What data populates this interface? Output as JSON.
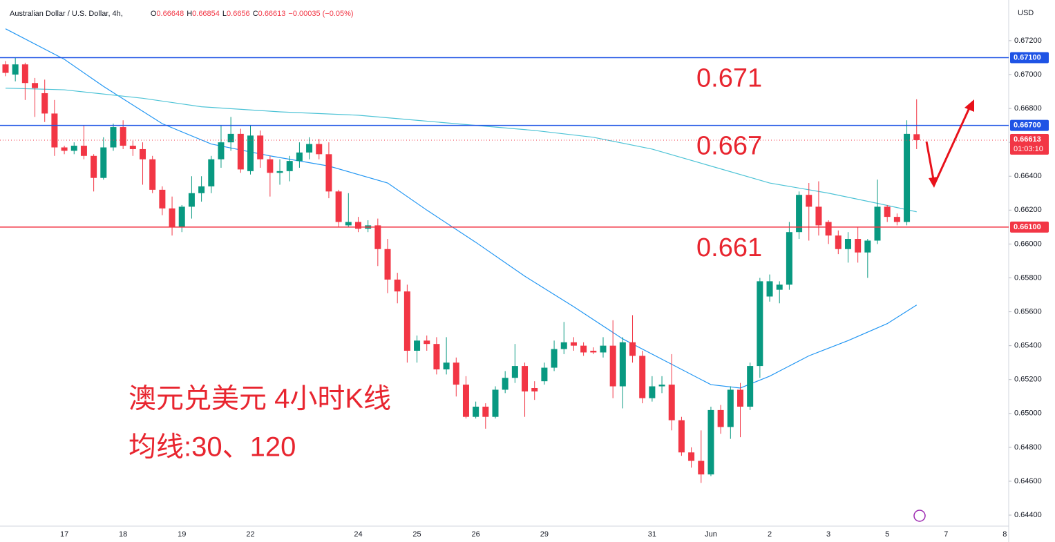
{
  "chart_data": {
    "type": "candlestick",
    "header": {
      "symbol": "Australian Dollar / U.S. Dollar, 4h,",
      "open_label": "O",
      "open": 0.66648,
      "high_label": "H",
      "high": 0.66854,
      "low_label": "L",
      "low": 0.6656,
      "close_label": "C",
      "close": 0.66613,
      "change": "−0.00035 (−0.05%)"
    },
    "currency": "USD",
    "annotations": [
      "澳元兑美元 4小时K线",
      "均线:30、120"
    ],
    "up_color": "#089981",
    "down_color": "#f23645",
    "categories": [
      null,
      null,
      null,
      null,
      null,
      null,
      "17",
      null,
      null,
      null,
      null,
      null,
      "18",
      null,
      null,
      null,
      null,
      null,
      "19",
      null,
      null,
      null,
      null,
      null,
      null,
      "22",
      null,
      null,
      null,
      null,
      null,
      null,
      null,
      null,
      null,
      null,
      "24",
      null,
      null,
      null,
      null,
      null,
      "25",
      null,
      null,
      null,
      null,
      null,
      "26",
      null,
      null,
      null,
      null,
      null,
      null,
      "29",
      null,
      null,
      null,
      null,
      null,
      null,
      null,
      null,
      null,
      null,
      "31",
      null,
      null,
      null,
      null,
      null,
      "Jun",
      null,
      null,
      null,
      null,
      null,
      "2",
      null,
      null,
      null,
      null,
      null,
      "3",
      null,
      null,
      null,
      null,
      null,
      "5",
      null,
      null,
      null,
      null,
      null,
      "7",
      null,
      null,
      null,
      null,
      null,
      "8"
    ],
    "open": [
      0.6706,
      0.67,
      0.6706,
      0.6695,
      0.6689,
      0.6677,
      0.6657,
      0.6655,
      0.6658,
      0.6652,
      0.6639,
      0.6657,
      0.6669,
      0.6658,
      0.6656,
      0.665,
      0.6632,
      0.6621,
      0.661,
      0.6622,
      0.663,
      0.6634,
      0.665,
      0.666,
      0.6665,
      0.6643,
      0.6664,
      0.665,
      0.6642,
      0.6643,
      0.6649,
      0.6654,
      0.6659,
      0.6653,
      0.6631,
      0.6611,
      0.6613,
      0.6609,
      0.6611,
      0.6597,
      0.6579,
      0.6572,
      0.6537,
      0.6543,
      0.6541,
      0.6526,
      0.653,
      0.6517,
      0.6498,
      0.6504,
      0.6498,
      0.6514,
      0.6521,
      0.6528,
      0.6515,
      0.6519,
      0.6527,
      0.6538,
      0.6542,
      0.654,
      0.6537,
      0.6536,
      0.654,
      0.6516,
      0.6542,
      0.6534,
      0.6509,
      0.6516,
      0.6517,
      0.6496,
      0.6477,
      0.6472,
      0.6464,
      0.6502,
      0.6492,
      0.6514,
      0.6504,
      0.6528,
      0.6569,
      0.6573,
      0.6576,
      0.6607,
      0.6629,
      0.6622,
      0.6613,
      0.6605,
      0.6597,
      0.6603,
      0.6595,
      0.6602,
      0.6622,
      0.6616,
      0.6613,
      0.66648,
      null,
      null,
      null,
      null,
      null,
      null,
      null,
      null,
      null
    ],
    "high": [
      0.6708,
      0.671,
      0.6707,
      0.6698,
      0.6697,
      0.6685,
      0.6658,
      0.666,
      0.667,
      0.6653,
      0.6663,
      0.6671,
      0.6673,
      0.6661,
      0.666,
      0.6652,
      0.6634,
      0.6628,
      0.6623,
      0.664,
      0.664,
      0.6652,
      0.667,
      0.6675,
      0.6668,
      0.667,
      0.6667,
      0.6652,
      0.665,
      0.6652,
      0.666,
      0.6663,
      0.6662,
      0.666,
      0.6632,
      0.663,
      0.6616,
      0.6614,
      0.6615,
      0.6603,
      0.6583,
      0.6576,
      0.6546,
      0.6546,
      0.6545,
      0.6545,
      0.6533,
      0.6522,
      0.6507,
      0.6506,
      0.6516,
      0.6525,
      0.6541,
      0.653,
      0.6519,
      0.653,
      0.6543,
      0.6554,
      0.6545,
      0.6542,
      0.6539,
      0.6545,
      0.6555,
      0.6545,
      0.6558,
      0.6537,
      0.6522,
      0.6522,
      0.6535,
      0.6498,
      0.648,
      0.649,
      0.6504,
      0.6505,
      0.6516,
      0.6518,
      0.653,
      0.658,
      0.6582,
      0.6578,
      0.6613,
      0.6631,
      0.6636,
      0.6637,
      0.6614,
      0.6608,
      0.6607,
      0.661,
      0.6603,
      0.6638,
      0.6623,
      0.6618,
      0.6673,
      0.66854,
      null,
      null,
      null,
      null,
      null,
      null,
      null,
      null,
      null
    ],
    "low": [
      0.6699,
      0.6696,
      0.6685,
      0.6675,
      0.6672,
      0.6652,
      0.6653,
      0.6653,
      0.665,
      0.6631,
      0.6638,
      0.6655,
      0.6656,
      0.6652,
      0.6635,
      0.663,
      0.6617,
      0.6605,
      0.6607,
      0.6615,
      0.6625,
      0.663,
      0.6645,
      0.6655,
      0.6642,
      0.6641,
      0.6645,
      0.6628,
      0.6635,
      0.6637,
      0.6645,
      0.665,
      0.665,
      0.6627,
      0.661,
      0.661,
      0.6607,
      0.6607,
      0.6587,
      0.6571,
      0.6565,
      0.653,
      0.653,
      0.6537,
      0.6523,
      0.6523,
      0.651,
      0.6497,
      0.6497,
      0.6491,
      0.6497,
      0.6512,
      0.6518,
      0.6498,
      0.6508,
      0.6517,
      0.6525,
      0.6535,
      0.6537,
      0.6534,
      0.6535,
      0.6533,
      0.6509,
      0.6503,
      0.653,
      0.6506,
      0.6507,
      0.6512,
      0.649,
      0.6475,
      0.6468,
      0.6459,
      0.6463,
      0.6488,
      0.6485,
      0.6486,
      0.6502,
      0.6521,
      0.6566,
      0.6565,
      0.6573,
      0.6603,
      0.6602,
      0.6605,
      0.66,
      0.6594,
      0.6589,
      0.6589,
      0.658,
      0.66,
      0.6613,
      0.6611,
      0.6611,
      0.6656,
      null,
      null,
      null,
      null,
      null,
      null,
      null,
      null,
      null
    ],
    "close": [
      0.6701,
      0.6706,
      0.6695,
      0.6692,
      0.6677,
      0.6657,
      0.6655,
      0.6658,
      0.6652,
      0.6639,
      0.6657,
      0.6669,
      0.6658,
      0.6656,
      0.665,
      0.6632,
      0.6621,
      0.661,
      0.6622,
      0.663,
      0.6634,
      0.665,
      0.666,
      0.6665,
      0.6644,
      0.6664,
      0.665,
      0.6642,
      0.6643,
      0.6649,
      0.6654,
      0.6659,
      0.6653,
      0.6631,
      0.6613,
      0.6613,
      0.6609,
      0.6611,
      0.6597,
      0.6579,
      0.6572,
      0.6537,
      0.6543,
      0.6541,
      0.6526,
      0.653,
      0.6517,
      0.6498,
      0.6504,
      0.6498,
      0.6514,
      0.6521,
      0.6528,
      0.6513,
      0.6513,
      0.6527,
      0.6538,
      0.6542,
      0.654,
      0.6536,
      0.6536,
      0.654,
      0.6516,
      0.6542,
      0.6534,
      0.6509,
      0.6516,
      0.6517,
      0.6496,
      0.6477,
      0.6472,
      0.6464,
      0.6502,
      0.6492,
      0.6514,
      0.6504,
      0.6528,
      0.6578,
      0.6578,
      0.6576,
      0.6607,
      0.6629,
      0.6622,
      0.6611,
      0.6605,
      0.6597,
      0.6603,
      0.6595,
      0.6602,
      0.6622,
      0.6616,
      0.6613,
      0.6665,
      0.66613,
      null,
      null,
      null,
      null,
      null,
      null,
      null,
      null,
      null
    ],
    "moving_averages": [
      {
        "color": "#2196f3",
        "x": [
          0,
          6,
          10,
          16,
          21,
          27,
          33,
          39,
          43,
          48,
          53,
          58,
          63,
          68,
          72,
          75,
          78,
          82,
          86,
          90,
          93
        ],
        "values": [
          0.6727,
          0.6709,
          0.6693,
          0.6671,
          0.6659,
          0.6652,
          0.6646,
          0.6636,
          0.662,
          0.6601,
          0.6581,
          0.6563,
          0.6544,
          0.6529,
          0.6517,
          0.6515,
          0.6522,
          0.6534,
          0.6543,
          0.6553,
          0.6564
        ]
      },
      {
        "color": "#4dc3d6",
        "x": [
          0,
          6,
          14,
          20,
          28,
          36,
          42,
          48,
          54,
          60,
          66,
          72,
          78,
          84,
          89,
          93
        ],
        "values": [
          0.6692,
          0.6691,
          0.6686,
          0.6681,
          0.6678,
          0.6676,
          0.6673,
          0.667,
          0.6667,
          0.6663,
          0.6656,
          0.6646,
          0.6636,
          0.663,
          0.6624,
          0.6619
        ]
      }
    ],
    "hlines": [
      {
        "value": 0.671,
        "tag": "0.67100",
        "note": "0.671",
        "color": "#1e53e5"
      },
      {
        "value": 0.667,
        "tag": "0.66700",
        "note": "0.667",
        "color": "#1e53e5"
      },
      {
        "value": 0.661,
        "tag": "0.66100",
        "note": "0.661",
        "color": "#f23645"
      }
    ],
    "last_price": 0.66613,
    "countdown": "01:03:10",
    "ylim": [
      0.64335,
      0.6744
    ],
    "yticks": [
      {
        "value": 0.644,
        "label": "0.64400"
      },
      {
        "value": 0.646,
        "label": "0.64600"
      },
      {
        "value": 0.648,
        "label": "0.64800"
      },
      {
        "value": 0.65,
        "label": "0.65000"
      },
      {
        "value": 0.652,
        "label": "0.65200"
      },
      {
        "value": 0.654,
        "label": "0.65400"
      },
      {
        "value": 0.656,
        "label": "0.65600"
      },
      {
        "value": 0.658,
        "label": "0.65800"
      },
      {
        "value": 0.66,
        "label": "0.66000"
      },
      {
        "value": 0.662,
        "label": "0.66200"
      },
      {
        "value": 0.664,
        "label": "0.66400"
      },
      {
        "value": 0.666,
        "label": "0.66600"
      },
      {
        "value": 0.668,
        "label": "0.66800"
      },
      {
        "value": 0.67,
        "label": "0.67000"
      },
      {
        "value": 0.672,
        "label": "0.67200"
      }
    ]
  }
}
